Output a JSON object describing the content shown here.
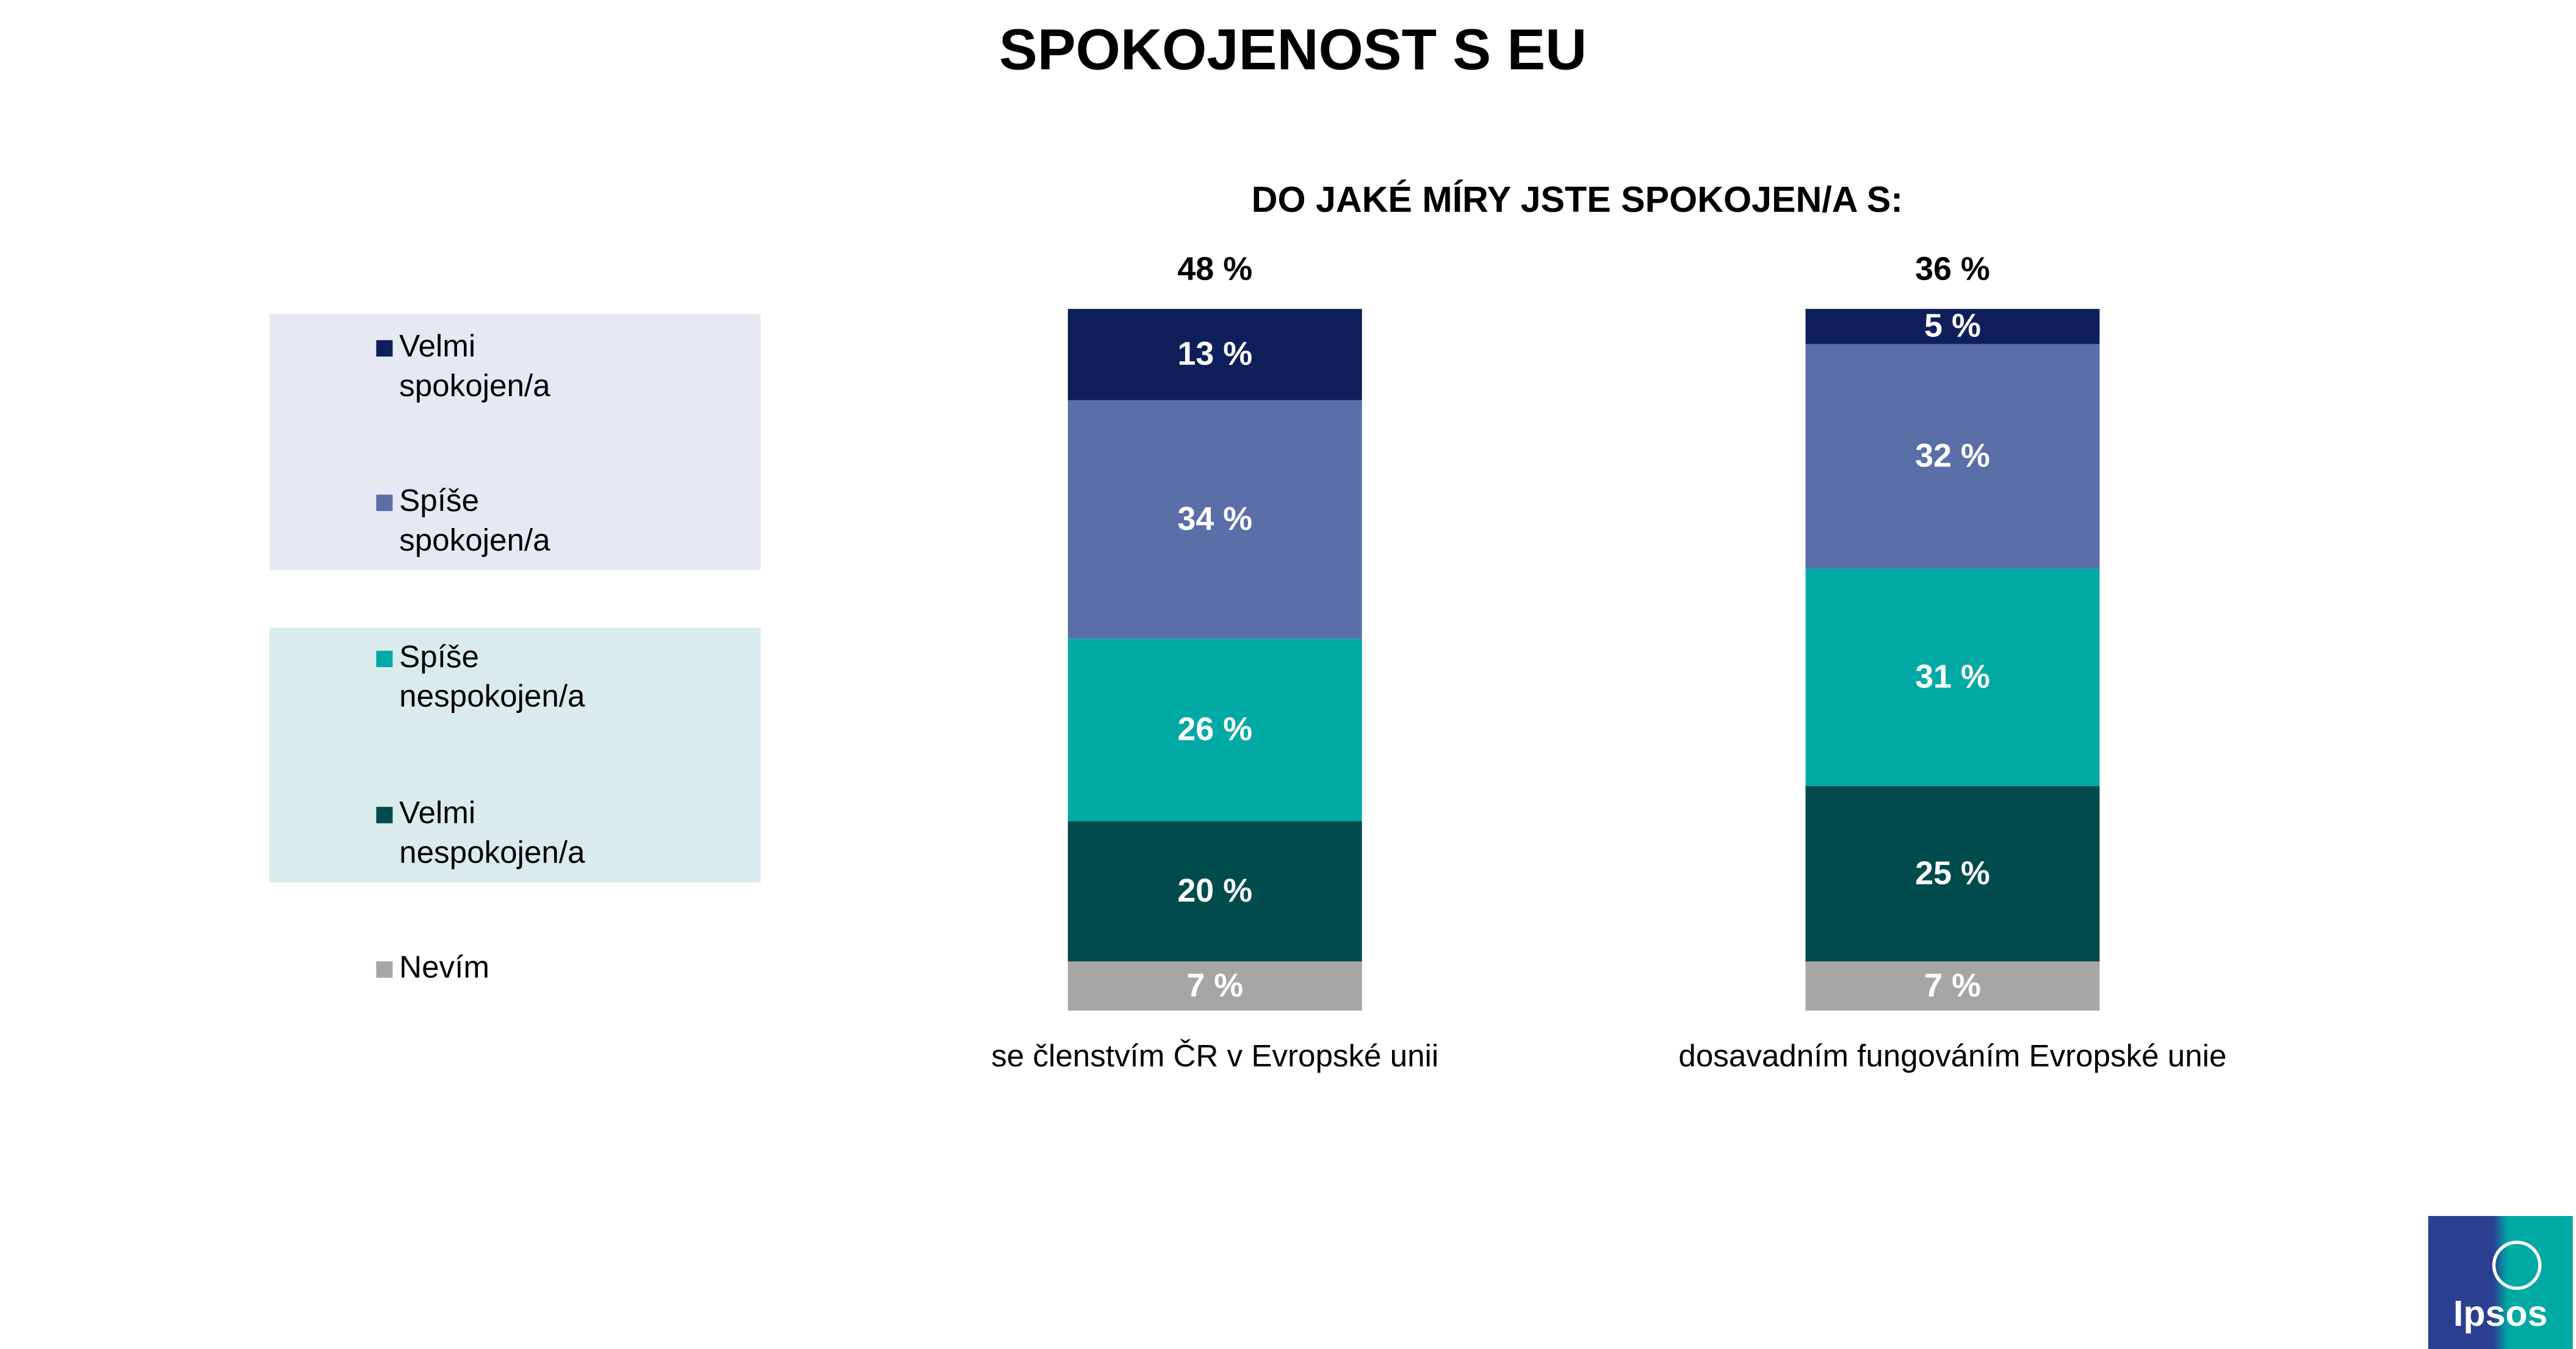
{
  "chart_data": {
    "type": "stacked_bar",
    "title": "SPOKOJENOST S EU",
    "subtitle": "DO JAKÉ MÍRY JSTE SPOKOJEN/A S:",
    "categories": [
      "se členstvím ČR v Evropské unii",
      "dosavadním fungováním Evropské unie"
    ],
    "totals": {
      "values": [
        48,
        36
      ],
      "value_labels": [
        "48 %",
        "36 %"
      ]
    },
    "series": [
      {
        "name": "Velmi spokojen/a",
        "color": "#0e1f5b",
        "values": [
          13,
          5
        ],
        "value_labels": [
          "13 %",
          "5 %"
        ]
      },
      {
        "name": "Spíše spokojen/a",
        "color": "#5a6ea8",
        "values": [
          34,
          32
        ],
        "value_labels": [
          "34 %",
          "32 %"
        ]
      },
      {
        "name": "Spíše nespokojen/a",
        "color": "#00a9a4",
        "values": [
          26,
          31
        ],
        "value_labels": [
          "26 %",
          "31 %"
        ]
      },
      {
        "name": "Velmi nespokojen/a",
        "color": "#004b4b",
        "values": [
          20,
          25
        ],
        "value_labels": [
          "20 %",
          "25 %"
        ]
      },
      {
        "name": "Nevím",
        "color": "#a6a6a6",
        "values": [
          7,
          7
        ],
        "value_labels": [
          "7 %",
          "7 %"
        ]
      }
    ]
  },
  "logo": "Ipsos"
}
